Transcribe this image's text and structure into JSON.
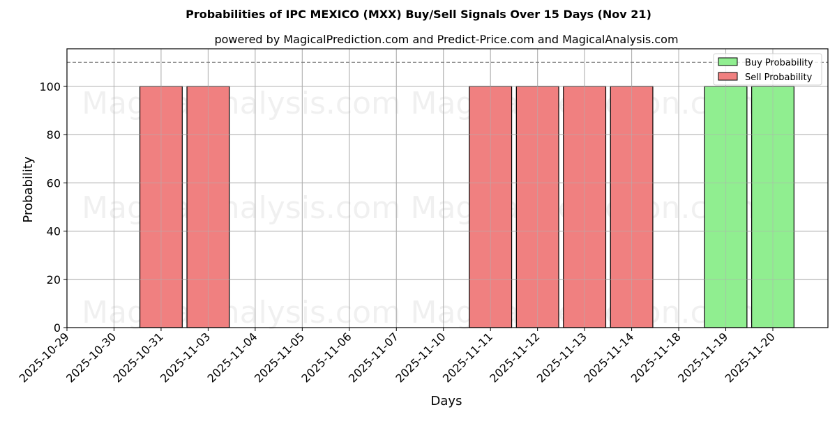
{
  "chart_data": {
    "type": "bar",
    "title": "Probabilities of IPC MEXICO (MXX) Buy/Sell Signals Over 15 Days (Nov 21)",
    "subtitle": "powered by MagicalPrediction.com and Predict-Price.com and MagicalAnalysis.com",
    "xlabel": "Days",
    "ylabel": "Probability",
    "ylim": [
      0,
      115.6
    ],
    "yticks": [
      0,
      20,
      40,
      60,
      80,
      100
    ],
    "grid": true,
    "legend_position": "upper right",
    "reference_line": {
      "y": 110,
      "style": "dashed",
      "color": "#808080"
    },
    "categories": [
      "2025-10-29",
      "2025-10-30",
      "2025-10-31",
      "2025-11-03",
      "2025-11-04",
      "2025-11-05",
      "2025-11-06",
      "2025-11-07",
      "2025-11-10",
      "2025-11-11",
      "2025-11-12",
      "2025-11-13",
      "2025-11-14",
      "2025-11-18",
      "2025-11-19",
      "2025-11-20"
    ],
    "series": [
      {
        "name": "Buy Probability",
        "color": "#90ee90",
        "values": [
          0,
          0,
          0,
          0,
          0,
          0,
          0,
          0,
          0,
          0,
          0,
          0,
          0,
          0,
          100,
          100
        ]
      },
      {
        "name": "Sell Probability",
        "color": "#f08080",
        "values": [
          0,
          0,
          100,
          100,
          0,
          0,
          0,
          0,
          0,
          100,
          100,
          100,
          100,
          0,
          0,
          0
        ]
      }
    ],
    "watermarks": [
      "MagicalAnalysis.com",
      "MagicalPrediction.com"
    ]
  }
}
